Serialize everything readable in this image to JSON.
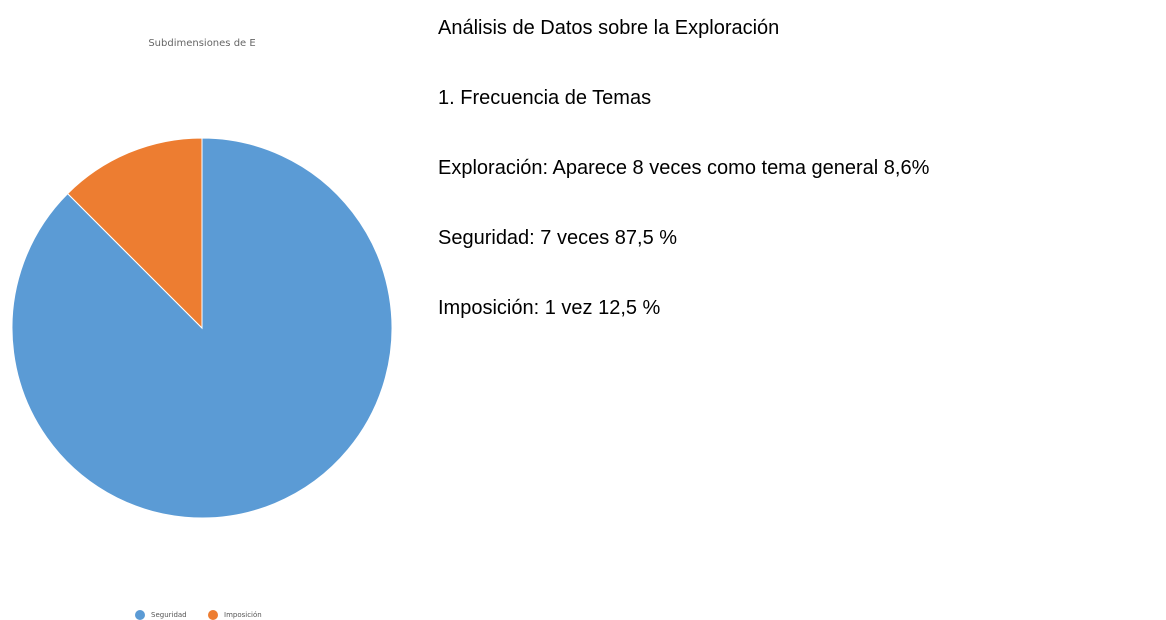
{
  "chart_data": {
    "type": "pie",
    "title": "Subdimensiones de E",
    "categories": [
      "Seguridad",
      "Imposición"
    ],
    "values": [
      87.5,
      12.5
    ],
    "colors": [
      "#5b9bd5",
      "#ed7d31"
    ],
    "legend": "bottom"
  },
  "analysis": {
    "title": "Análisis de Datos sobre la Exploración",
    "lines": [
      "1. Frecuencia de Temas",
      "Exploración: Aparece 8 veces como tema general 8,6%",
      "Seguridad: 7 veces 87,5 %",
      "Imposición: 1 vez 12,5 %"
    ]
  }
}
